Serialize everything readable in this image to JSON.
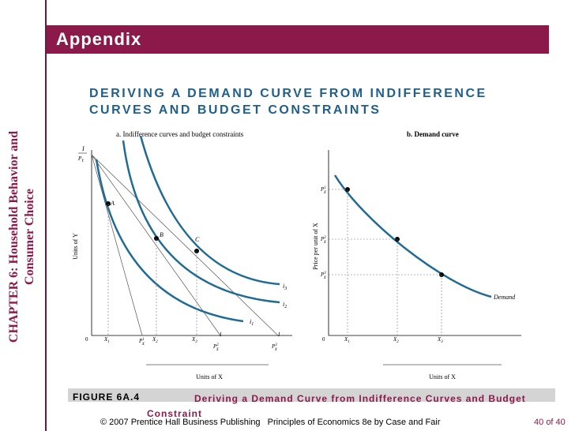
{
  "sidebar": {
    "line1": "CHAPTER 6:  Household Behavior and",
    "line2": "Consumer Choice"
  },
  "header": {
    "title": "Appendix"
  },
  "slide": {
    "title": "DERIVING A DEMAND CURVE FROM INDIFFERENCE CURVES AND BUDGET CONSTRAINTS"
  },
  "panel_a": {
    "title": "a. Indifference curves and budget constraints",
    "y_axis": "Units of Y",
    "x_axis": "Units of X",
    "intercept_label": "I",
    "intercept_sub": "P",
    "intercept_sub_idx": "Y",
    "origin": "0",
    "points": [
      "A",
      "B",
      "C"
    ],
    "curves": [
      "i",
      "i",
      "i"
    ],
    "curve_idx": [
      "1",
      "2",
      "3"
    ],
    "x_ticks": [
      "X",
      "X",
      "X"
    ],
    "x_tick_idx": [
      "1",
      "2",
      "3"
    ],
    "budget_label": "I",
    "price_labels": [
      "P",
      "P",
      "P"
    ],
    "price_sup": [
      "1",
      "2",
      "3"
    ],
    "price_sub": "X"
  },
  "panel_b": {
    "title": "b. Demand curve",
    "y_axis": "Price per unit of X",
    "x_axis": "Units of X",
    "origin": "0",
    "curve_label": "Demand",
    "price_labels": [
      "P",
      "P",
      "P"
    ],
    "price_sup": [
      "1",
      "2",
      "3"
    ],
    "price_sub": "X",
    "x_ticks": [
      "X",
      "X",
      "X"
    ],
    "x_tick_idx": [
      "1",
      "2",
      "3"
    ]
  },
  "colors": {
    "accent": "#8b1a4a",
    "title_blue": "#1f5f8b",
    "curve_blue": "#1f6b96"
  },
  "caption": {
    "label": "FIGURE 6A.4",
    "text": "Deriving a Demand Curve from Indifference Curves and Budget Constraint"
  },
  "footer": {
    "copyright": "© 2007 Prentice Hall Business Publishing",
    "book": "Principles of Economics 8e by Case and Fair"
  },
  "page": {
    "current": "40",
    "of_label": "of 40"
  }
}
